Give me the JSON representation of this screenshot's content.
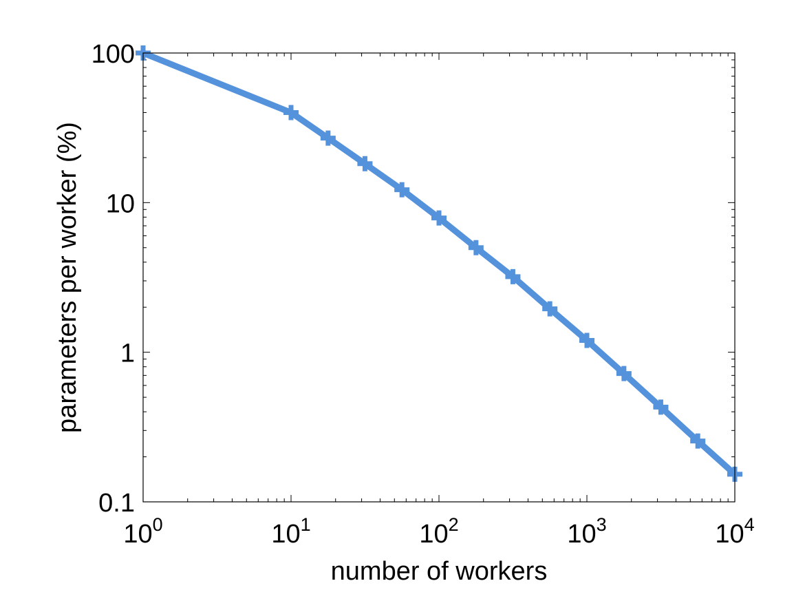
{
  "chart_data": {
    "type": "line",
    "title": "",
    "xlabel": "number of workers",
    "ylabel": "parameters per worker (%)",
    "x_scale": "log",
    "y_scale": "log",
    "xlim": [
      1,
      10000
    ],
    "ylim": [
      0.1,
      100
    ],
    "grid": false,
    "x_ticks": [
      {
        "value": 1,
        "base": "10",
        "exp": "0"
      },
      {
        "value": 10,
        "base": "10",
        "exp": "1"
      },
      {
        "value": 100,
        "base": "10",
        "exp": "2"
      },
      {
        "value": 1000,
        "base": "10",
        "exp": "3"
      },
      {
        "value": 10000,
        "base": "10",
        "exp": "4"
      }
    ],
    "y_ticks": [
      {
        "value": 100,
        "label": "100"
      },
      {
        "value": 10,
        "label": "10"
      },
      {
        "value": 1,
        "label": "1"
      },
      {
        "value": 0.1,
        "label": "0.1"
      }
    ],
    "series": [
      {
        "color": "#5592dc",
        "marker": "plus",
        "x": [
          1,
          10,
          17.8,
          31.6,
          56.2,
          100,
          178,
          316,
          562,
          1000,
          1780,
          3160,
          5620,
          10000
        ],
        "y": [
          100,
          40,
          27,
          18.2,
          12.2,
          7.9,
          5.0,
          3.2,
          1.95,
          1.2,
          0.72,
          0.43,
          0.255,
          0.153
        ]
      }
    ]
  }
}
